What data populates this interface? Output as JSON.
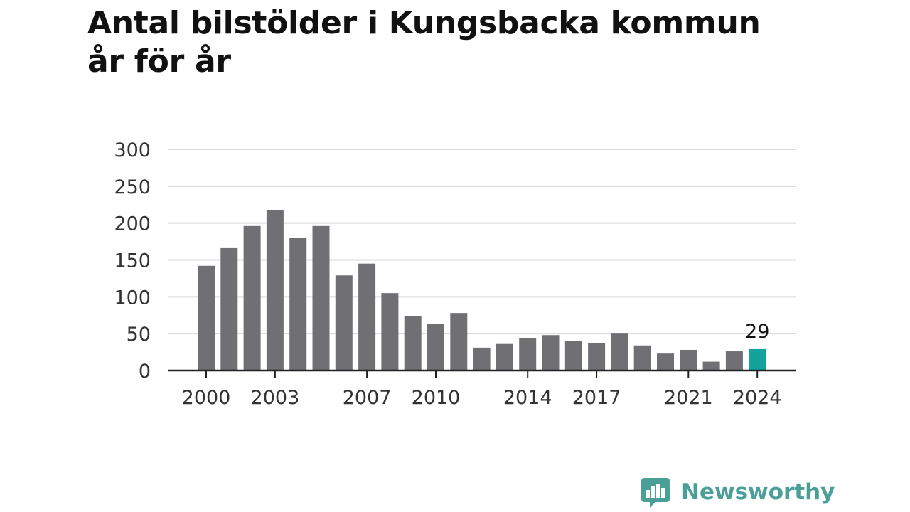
{
  "title_line1": "Antal bilstölder i Kungsbacka kommun",
  "title_line2": "år för år",
  "colors": {
    "bar": "#706f74",
    "highlight": "#14a39c",
    "grid": "#d9d9d9",
    "axis": "#222222",
    "brand": "#4aa098"
  },
  "chart_data": {
    "type": "bar",
    "x": [
      2000,
      2001,
      2002,
      2003,
      2004,
      2005,
      2006,
      2007,
      2008,
      2009,
      2010,
      2011,
      2012,
      2013,
      2014,
      2015,
      2016,
      2017,
      2018,
      2019,
      2020,
      2021,
      2022,
      2023,
      2024
    ],
    "values": [
      142,
      166,
      196,
      218,
      180,
      196,
      129,
      145,
      105,
      74,
      63,
      78,
      31,
      36,
      44,
      48,
      40,
      37,
      51,
      34,
      23,
      28,
      12,
      26,
      29
    ],
    "x_tick_labels": [
      "2000",
      "2003",
      "2007",
      "2010",
      "2014",
      "2017",
      "2021",
      "2024"
    ],
    "y_ticks": [
      "0",
      "50",
      "100",
      "150",
      "200",
      "250",
      "300"
    ],
    "ylim": [
      0,
      300
    ],
    "highlight_year": 2024,
    "annotation": {
      "year": 2024,
      "text": "29"
    },
    "grid": true,
    "legend": "none"
  },
  "brand": {
    "name": "Newsworthy",
    "logo_icon": "chart-speech-bubble-icon"
  }
}
